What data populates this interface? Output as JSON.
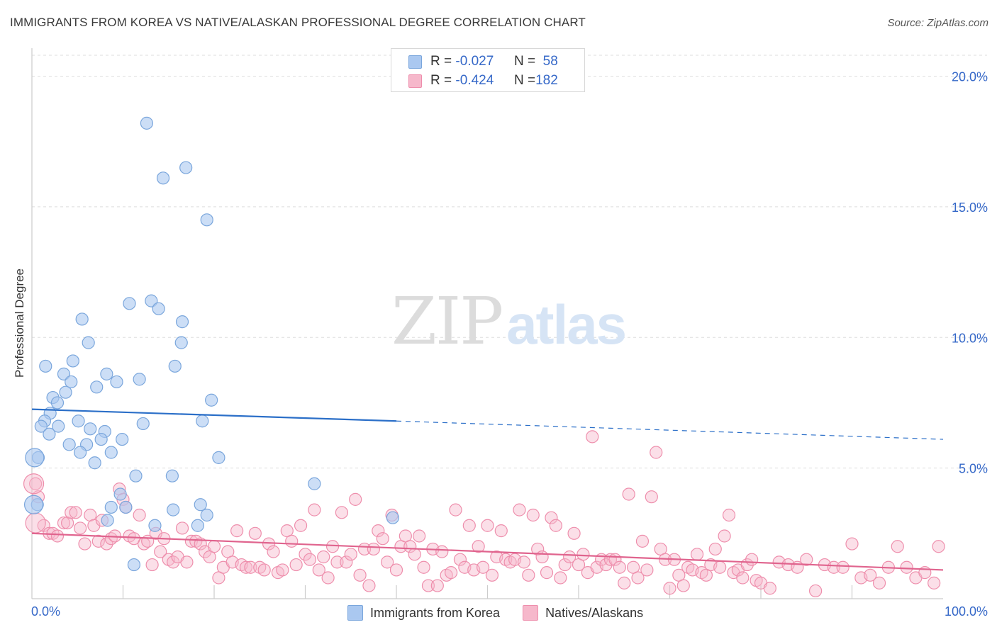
{
  "title": "IMMIGRANTS FROM KOREA VS NATIVE/ALASKAN PROFESSIONAL DEGREE CORRELATION CHART",
  "source": "Source: ZipAtlas.com",
  "watermark": {
    "zip": "ZIP",
    "atlas": "atlas"
  },
  "legend_top": [
    {
      "r_label": "R =",
      "r_value": "-0.027",
      "n_label": "N =",
      "n_value": "58"
    },
    {
      "r_label": "R =",
      "r_value": "-0.424",
      "n_label": "N =",
      "n_value": "182"
    }
  ],
  "colors": {
    "korea_fill": "#aac8f0",
    "korea_stroke": "#7aa6dc",
    "korea_line": "#2b6fc8",
    "native_fill": "#f6b8cb",
    "native_stroke": "#ee8eac",
    "native_line": "#e0648e",
    "grid": "#dddddd",
    "tick_label": "#3568c8"
  },
  "chart_data": {
    "type": "scatter",
    "title": "IMMIGRANTS FROM KOREA VS NATIVE/ALASKAN PROFESSIONAL DEGREE CORRELATION CHART",
    "xlabel": "",
    "ylabel": "Professional Degree",
    "xlim": [
      0,
      100
    ],
    "ylim": [
      0,
      20.8
    ],
    "x_tick_labels": [
      "0.0%",
      "100.0%"
    ],
    "y_ticks": [
      5,
      10,
      15,
      20
    ],
    "y_tick_labels": [
      "5.0%",
      "10.0%",
      "15.0%",
      "20.0%"
    ],
    "grid": true,
    "series": [
      {
        "name": "Immigrants from Korea",
        "r": -0.027,
        "n": 58,
        "trend": {
          "x_start": 0,
          "y_start": 7.25,
          "x_solid_end": 40,
          "y_solid_end": 6.8,
          "x_end": 100,
          "y_end": 6.1
        },
        "points": [
          [
            12.6,
            18.2
          ],
          [
            14.4,
            16.1
          ],
          [
            16.9,
            16.5
          ],
          [
            19.2,
            14.5
          ],
          [
            13.1,
            11.4
          ],
          [
            10.7,
            11.3
          ],
          [
            13.9,
            11.1
          ],
          [
            5.5,
            10.7
          ],
          [
            16.5,
            10.6
          ],
          [
            6.2,
            9.8
          ],
          [
            16.4,
            9.8
          ],
          [
            1.5,
            8.9
          ],
          [
            4.5,
            9.1
          ],
          [
            15.7,
            8.9
          ],
          [
            3.5,
            8.6
          ],
          [
            8.2,
            8.6
          ],
          [
            4.3,
            8.3
          ],
          [
            9.3,
            8.3
          ],
          [
            11.8,
            8.4
          ],
          [
            7.1,
            8.1
          ],
          [
            3.7,
            7.9
          ],
          [
            2.3,
            7.7
          ],
          [
            2.8,
            7.5
          ],
          [
            19.7,
            7.6
          ],
          [
            2.0,
            7.1
          ],
          [
            1.4,
            6.8
          ],
          [
            1.0,
            6.6
          ],
          [
            2.9,
            6.6
          ],
          [
            5.1,
            6.8
          ],
          [
            12.2,
            6.7
          ],
          [
            18.7,
            6.8
          ],
          [
            1.9,
            6.3
          ],
          [
            8.0,
            6.4
          ],
          [
            6.4,
            6.5
          ],
          [
            7.6,
            6.1
          ],
          [
            9.9,
            6.1
          ],
          [
            4.1,
            5.9
          ],
          [
            6.0,
            5.9
          ],
          [
            5.3,
            5.6
          ],
          [
            8.7,
            5.6
          ],
          [
            0.7,
            5.4
          ],
          [
            6.9,
            5.2
          ],
          [
            20.5,
            5.4
          ],
          [
            11.4,
            4.7
          ],
          [
            15.4,
            4.7
          ],
          [
            31.0,
            4.4
          ],
          [
            0.6,
            3.6
          ],
          [
            9.7,
            4.0
          ],
          [
            10.3,
            3.5
          ],
          [
            8.7,
            3.5
          ],
          [
            15.5,
            3.4
          ],
          [
            18.5,
            3.6
          ],
          [
            19.2,
            3.2
          ],
          [
            8.3,
            3.0
          ],
          [
            13.5,
            2.8
          ],
          [
            18.2,
            2.8
          ],
          [
            39.6,
            3.1
          ],
          [
            11.2,
            1.3
          ]
        ],
        "large_points": [
          [
            0.2,
            3.6
          ],
          [
            0.3,
            5.4
          ]
        ]
      },
      {
        "name": "Natives/Alaskans",
        "r": -0.424,
        "n": 182,
        "trend": {
          "x_start": 0,
          "y_start": 2.5,
          "x_end": 100,
          "y_end": 1.1
        },
        "points": [
          [
            0.4,
            4.4
          ],
          [
            0.7,
            3.9
          ],
          [
            1.3,
            2.8
          ],
          [
            1.9,
            2.5
          ],
          [
            2.3,
            2.5
          ],
          [
            2.8,
            2.4
          ],
          [
            3.5,
            2.9
          ],
          [
            3.9,
            2.9
          ],
          [
            4.3,
            3.3
          ],
          [
            4.8,
            3.3
          ],
          [
            5.3,
            2.7
          ],
          [
            5.8,
            2.1
          ],
          [
            6.4,
            3.2
          ],
          [
            6.8,
            2.8
          ],
          [
            7.3,
            2.2
          ],
          [
            7.7,
            3.0
          ],
          [
            8.2,
            2.1
          ],
          [
            8.7,
            2.3
          ],
          [
            9.1,
            2.4
          ],
          [
            9.6,
            4.2
          ],
          [
            10.0,
            3.8
          ],
          [
            10.3,
            3.5
          ],
          [
            10.7,
            2.4
          ],
          [
            11.2,
            2.3
          ],
          [
            11.8,
            3.2
          ],
          [
            12.3,
            2.1
          ],
          [
            12.7,
            2.2
          ],
          [
            13.2,
            1.3
          ],
          [
            13.6,
            2.5
          ],
          [
            14.1,
            1.8
          ],
          [
            14.5,
            2.3
          ],
          [
            15.0,
            1.5
          ],
          [
            15.5,
            1.4
          ],
          [
            16.0,
            1.6
          ],
          [
            16.5,
            2.7
          ],
          [
            17.0,
            1.4
          ],
          [
            17.5,
            2.2
          ],
          [
            18.0,
            2.2
          ],
          [
            18.5,
            2.1
          ],
          [
            19.0,
            1.8
          ],
          [
            19.5,
            1.6
          ],
          [
            20.0,
            2.0
          ],
          [
            20.5,
            0.8
          ],
          [
            21.0,
            1.2
          ],
          [
            21.5,
            1.8
          ],
          [
            22.0,
            1.4
          ],
          [
            22.5,
            2.6
          ],
          [
            23.0,
            1.3
          ],
          [
            23.5,
            1.2
          ],
          [
            24.0,
            1.2
          ],
          [
            24.5,
            2.5
          ],
          [
            25.0,
            1.2
          ],
          [
            25.5,
            1.1
          ],
          [
            26.0,
            2.1
          ],
          [
            26.5,
            1.8
          ],
          [
            27.0,
            1.0
          ],
          [
            27.5,
            1.1
          ],
          [
            28.0,
            2.6
          ],
          [
            28.5,
            2.2
          ],
          [
            29.0,
            1.3
          ],
          [
            29.5,
            2.8
          ],
          [
            30.0,
            1.7
          ],
          [
            30.5,
            1.5
          ],
          [
            31.0,
            3.4
          ],
          [
            31.5,
            1.1
          ],
          [
            32.0,
            1.6
          ],
          [
            32.5,
            0.8
          ],
          [
            33.0,
            2.0
          ],
          [
            33.5,
            1.4
          ],
          [
            34.0,
            3.3
          ],
          [
            34.5,
            1.4
          ],
          [
            35.0,
            1.7
          ],
          [
            35.5,
            3.8
          ],
          [
            36.0,
            0.9
          ],
          [
            36.5,
            1.9
          ],
          [
            37.0,
            0.5
          ],
          [
            37.5,
            1.9
          ],
          [
            38.0,
            2.6
          ],
          [
            38.5,
            2.3
          ],
          [
            39.0,
            1.4
          ],
          [
            39.5,
            3.2
          ],
          [
            40.0,
            1.1
          ],
          [
            40.5,
            2.0
          ],
          [
            41.0,
            2.4
          ],
          [
            41.5,
            2.0
          ],
          [
            42.0,
            1.7
          ],
          [
            42.5,
            2.4
          ],
          [
            43.0,
            1.2
          ],
          [
            43.5,
            0.5
          ],
          [
            44.0,
            1.9
          ],
          [
            44.5,
            0.5
          ],
          [
            45.0,
            1.8
          ],
          [
            45.5,
            0.9
          ],
          [
            46.0,
            1.0
          ],
          [
            46.5,
            3.4
          ],
          [
            47.0,
            1.5
          ],
          [
            47.5,
            1.2
          ],
          [
            48.0,
            2.8
          ],
          [
            48.5,
            1.1
          ],
          [
            49.0,
            2.0
          ],
          [
            49.5,
            1.2
          ],
          [
            50.0,
            2.8
          ],
          [
            50.5,
            0.9
          ],
          [
            51.0,
            1.6
          ],
          [
            51.5,
            2.6
          ],
          [
            52.0,
            1.5
          ],
          [
            52.5,
            1.4
          ],
          [
            53.0,
            1.5
          ],
          [
            53.5,
            3.4
          ],
          [
            54.0,
            1.4
          ],
          [
            54.5,
            0.9
          ],
          [
            55.0,
            3.2
          ],
          [
            55.5,
            1.9
          ],
          [
            56.0,
            1.6
          ],
          [
            56.5,
            1.0
          ],
          [
            57.0,
            3.1
          ],
          [
            57.5,
            2.8
          ],
          [
            58.0,
            0.8
          ],
          [
            58.5,
            1.3
          ],
          [
            59.0,
            1.6
          ],
          [
            59.5,
            2.5
          ],
          [
            60.0,
            1.3
          ],
          [
            60.5,
            1.7
          ],
          [
            61.0,
            1.0
          ],
          [
            61.5,
            6.2
          ],
          [
            62.0,
            1.2
          ],
          [
            62.5,
            1.5
          ],
          [
            63.0,
            1.3
          ],
          [
            63.5,
            1.5
          ],
          [
            64.0,
            1.5
          ],
          [
            64.5,
            1.2
          ],
          [
            65.0,
            0.6
          ],
          [
            65.5,
            4.0
          ],
          [
            66.0,
            1.2
          ],
          [
            66.5,
            0.8
          ],
          [
            67.0,
            2.2
          ],
          [
            67.5,
            1.1
          ],
          [
            68.0,
            3.9
          ],
          [
            68.5,
            5.6
          ],
          [
            69.0,
            1.9
          ],
          [
            69.5,
            1.5
          ],
          [
            70.0,
            0.4
          ],
          [
            70.5,
            1.5
          ],
          [
            71.0,
            0.9
          ],
          [
            71.5,
            0.5
          ],
          [
            72.0,
            1.2
          ],
          [
            72.5,
            1.1
          ],
          [
            73.0,
            1.7
          ],
          [
            73.5,
            1.0
          ],
          [
            74.0,
            0.9
          ],
          [
            74.5,
            1.3
          ],
          [
            75.0,
            1.9
          ],
          [
            75.5,
            1.2
          ],
          [
            76.0,
            2.4
          ],
          [
            76.5,
            3.2
          ],
          [
            77.0,
            1.0
          ],
          [
            77.5,
            1.1
          ],
          [
            78.0,
            0.8
          ],
          [
            78.5,
            1.3
          ],
          [
            79.0,
            1.5
          ],
          [
            79.5,
            0.7
          ],
          [
            80.0,
            0.6
          ],
          [
            81.0,
            0.4
          ],
          [
            82.0,
            1.4
          ],
          [
            83.0,
            1.3
          ],
          [
            84.0,
            1.2
          ],
          [
            85.0,
            1.5
          ],
          [
            86.0,
            0.3
          ],
          [
            87.0,
            1.3
          ],
          [
            88.0,
            1.2
          ],
          [
            89.0,
            1.2
          ],
          [
            90.0,
            2.1
          ],
          [
            91.0,
            0.8
          ],
          [
            92.0,
            0.9
          ],
          [
            93.0,
            0.6
          ],
          [
            94.0,
            1.2
          ],
          [
            95.0,
            2.0
          ],
          [
            96.0,
            1.2
          ],
          [
            97.0,
            0.8
          ],
          [
            98.0,
            1.0
          ],
          [
            99.0,
            0.6
          ],
          [
            99.5,
            2.0
          ]
        ],
        "large_points": [
          [
            0.2,
            4.4
          ],
          [
            0.4,
            2.9
          ]
        ]
      }
    ]
  },
  "legend_bottom": [
    "Immigrants from Korea",
    "Natives/Alaskans"
  ]
}
